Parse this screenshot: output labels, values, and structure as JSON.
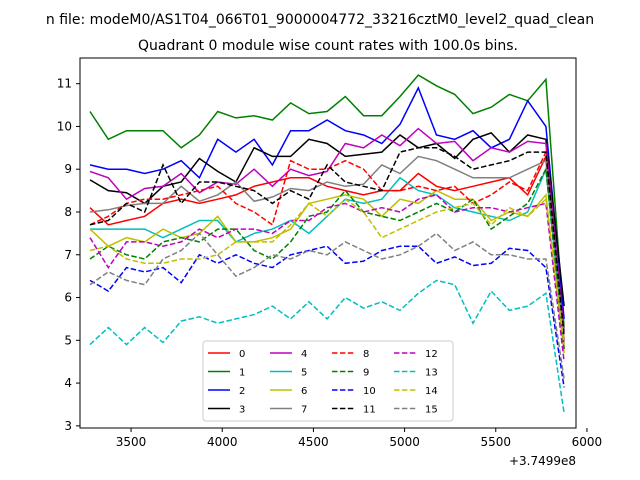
{
  "suptitle": "n file: modeM0/AS1T04_066T01_9000004772_33216cztM0_level2_quad_clean",
  "title": "Quadrant 0 module wise count rates with 100.0s bins.",
  "chart_data": {
    "type": "line",
    "x_offset_label": "+3.7499e8",
    "xlim": [
      3220,
      5940
    ],
    "ylim": [
      2.95,
      11.6
    ],
    "xticks": [
      3500,
      4000,
      4500,
      5000,
      5500,
      6000
    ],
    "yticks": [
      3,
      4,
      5,
      6,
      7,
      8,
      9,
      10,
      11
    ],
    "x": [
      3275,
      3375,
      3475,
      3575,
      3675,
      3775,
      3875,
      3975,
      4075,
      4175,
      4275,
      4375,
      4475,
      4575,
      4675,
      4775,
      4875,
      4975,
      5075,
      5175,
      5275,
      5375,
      5475,
      5575,
      5675,
      5775,
      5875
    ],
    "legend": {
      "location": "lower center",
      "columns": 4
    },
    "series": [
      {
        "name": "0",
        "color": "#ff0000",
        "dash": "solid",
        "values": [
          8.1,
          7.7,
          7.8,
          7.9,
          8.2,
          8.3,
          8.2,
          8.3,
          8.4,
          8.6,
          8.7,
          8.8,
          8.8,
          8.6,
          8.5,
          8.4,
          8.5,
          8.5,
          8.9,
          8.6,
          8.5,
          8.6,
          8.7,
          8.8,
          8.4,
          9.3,
          4.8
        ]
      },
      {
        "name": "1",
        "color": "#008000",
        "dash": "solid",
        "values": [
          10.35,
          9.7,
          9.9,
          9.9,
          9.9,
          9.5,
          9.8,
          10.35,
          10.2,
          10.25,
          10.15,
          10.55,
          10.3,
          10.35,
          10.7,
          10.25,
          10.25,
          10.7,
          11.2,
          10.95,
          10.75,
          10.3,
          10.45,
          10.75,
          10.6,
          11.1,
          5.3
        ]
      },
      {
        "name": "2",
        "color": "#0000ff",
        "dash": "solid",
        "values": [
          9.1,
          9.0,
          9.0,
          8.9,
          9.0,
          9.2,
          8.8,
          9.7,
          9.4,
          9.7,
          9.1,
          9.9,
          9.9,
          10.15,
          9.9,
          9.8,
          9.6,
          10.05,
          10.9,
          9.8,
          9.7,
          9.9,
          9.5,
          9.7,
          10.6,
          10.0,
          5.5
        ]
      },
      {
        "name": "3",
        "color": "#000000",
        "dash": "solid",
        "values": [
          8.75,
          8.5,
          8.45,
          8.2,
          8.6,
          8.7,
          9.25,
          8.95,
          8.7,
          9.5,
          9.3,
          9.3,
          9.7,
          9.6,
          9.3,
          9.35,
          9.4,
          9.8,
          9.5,
          9.6,
          9.25,
          9.7,
          9.85,
          9.4,
          9.8,
          9.7,
          5.8
        ]
      },
      {
        "name": "4",
        "color": "#bf00bf",
        "dash": "solid",
        "values": [
          8.95,
          8.8,
          8.3,
          8.55,
          8.6,
          8.9,
          8.45,
          8.7,
          8.65,
          9.0,
          8.6,
          9.0,
          8.85,
          8.95,
          9.6,
          9.5,
          9.8,
          9.55,
          9.95,
          9.6,
          9.65,
          9.2,
          9.5,
          9.4,
          9.65,
          9.6,
          5.2
        ]
      },
      {
        "name": "5",
        "color": "#00bfbf",
        "dash": "solid",
        "values": [
          7.6,
          7.6,
          7.6,
          7.6,
          7.4,
          7.6,
          7.8,
          7.8,
          7.3,
          7.5,
          7.6,
          7.8,
          7.5,
          7.9,
          8.3,
          8.2,
          8.3,
          8.8,
          8.5,
          8.4,
          8.1,
          8.0,
          7.9,
          7.8,
          8.0,
          9.0,
          4.9
        ]
      },
      {
        "name": "6",
        "color": "#bfbf00",
        "dash": "solid",
        "values": [
          7.6,
          7.2,
          7.4,
          7.3,
          7.6,
          7.4,
          7.5,
          7.9,
          7.3,
          7.3,
          7.4,
          7.6,
          8.2,
          8.3,
          8.4,
          8.3,
          7.9,
          8.3,
          8.2,
          8.5,
          8.3,
          8.3,
          7.8,
          8.0,
          7.9,
          8.4,
          4.7
        ]
      },
      {
        "name": "7",
        "color": "#808080",
        "dash": "solid",
        "values": [
          8.0,
          8.05,
          8.15,
          8.2,
          8.2,
          8.6,
          8.25,
          8.4,
          8.7,
          8.25,
          8.35,
          8.55,
          8.5,
          8.7,
          8.6,
          8.65,
          9.1,
          8.9,
          9.3,
          9.2,
          9.0,
          8.8,
          8.8,
          8.8,
          9.0,
          9.2,
          5.0
        ]
      },
      {
        "name": "8",
        "color": "#ff0000",
        "dash": "dashed",
        "values": [
          7.7,
          7.9,
          8.2,
          8.3,
          8.3,
          8.4,
          8.5,
          8.6,
          8.2,
          8.0,
          7.7,
          9.2,
          9.0,
          9.0,
          9.2,
          9.0,
          8.5,
          8.5,
          8.6,
          8.5,
          8.6,
          8.2,
          8.4,
          8.7,
          8.5,
          9.4,
          4.9
        ]
      },
      {
        "name": "9",
        "color": "#008000",
        "dash": "dashed",
        "values": [
          6.9,
          7.2,
          7.0,
          6.9,
          7.3,
          7.4,
          7.3,
          7.6,
          7.6,
          7.1,
          6.9,
          7.3,
          7.9,
          8.0,
          8.5,
          8.0,
          7.9,
          7.8,
          8.0,
          8.2,
          8.0,
          8.3,
          7.6,
          7.9,
          8.2,
          9.0,
          4.8
        ]
      },
      {
        "name": "10",
        "color": "#0000ff",
        "dash": "dashed",
        "values": [
          6.4,
          6.15,
          6.7,
          6.6,
          6.7,
          6.35,
          7.0,
          6.8,
          7.0,
          6.8,
          6.7,
          7.0,
          7.1,
          7.2,
          6.8,
          6.85,
          7.1,
          7.2,
          7.2,
          6.8,
          6.95,
          6.75,
          6.8,
          7.15,
          7.1,
          6.7,
          3.9
        ]
      },
      {
        "name": "11",
        "color": "#000000",
        "dash": "dashed",
        "values": [
          7.7,
          7.8,
          8.2,
          8.0,
          9.1,
          8.2,
          8.7,
          8.7,
          8.6,
          8.5,
          8.2,
          8.5,
          8.3,
          9.1,
          8.7,
          8.6,
          8.5,
          9.4,
          9.5,
          9.5,
          9.3,
          9.0,
          9.1,
          9.2,
          9.4,
          9.4,
          5.1
        ]
      },
      {
        "name": "12",
        "color": "#bf00bf",
        "dash": "dashed",
        "values": [
          7.4,
          6.7,
          7.3,
          7.3,
          7.2,
          7.3,
          7.6,
          7.4,
          7.6,
          7.6,
          7.5,
          7.8,
          7.8,
          8.1,
          8.2,
          8.0,
          8.1,
          8.0,
          8.3,
          8.4,
          8.0,
          8.1,
          8.1,
          8.0,
          8.1,
          8.2,
          4.5
        ]
      },
      {
        "name": "13",
        "color": "#00bfbf",
        "dash": "dashed",
        "values": [
          4.9,
          5.3,
          4.9,
          5.3,
          4.95,
          5.45,
          5.55,
          5.4,
          5.5,
          5.6,
          5.8,
          5.5,
          5.9,
          5.5,
          6.0,
          5.75,
          5.9,
          5.7,
          6.1,
          6.4,
          6.3,
          5.4,
          6.15,
          5.7,
          5.8,
          6.1,
          3.3
        ]
      },
      {
        "name": "14",
        "color": "#bfbf00",
        "dash": "dashed",
        "values": [
          7.1,
          7.2,
          6.9,
          6.8,
          6.8,
          6.9,
          6.9,
          7.0,
          7.3,
          7.3,
          7.3,
          7.7,
          8.2,
          7.9,
          8.3,
          8.0,
          7.4,
          7.6,
          7.8,
          8.0,
          8.1,
          8.2,
          7.7,
          8.1,
          7.9,
          8.3,
          4.9
        ]
      },
      {
        "name": "15",
        "color": "#808080",
        "dash": "dashed",
        "values": [
          6.3,
          6.6,
          6.4,
          6.3,
          6.9,
          7.1,
          7.5,
          7.0,
          6.5,
          6.7,
          7.0,
          6.9,
          7.1,
          7.0,
          7.3,
          7.1,
          6.9,
          7.0,
          7.2,
          7.5,
          7.1,
          7.3,
          7.0,
          7.0,
          6.9,
          6.9,
          4.1
        ]
      }
    ]
  }
}
